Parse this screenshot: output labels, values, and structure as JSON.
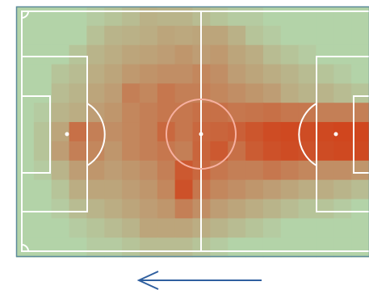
{
  "figure": {
    "kind": "football pitch heatmap",
    "pitch_color": "#b3d3a8",
    "line_color": "#ffffff",
    "border_color": "#5c8a9a",
    "heat_color": "#d23a12",
    "arrow_color": "#2f5f9f",
    "attack_direction": "right-to-left"
  },
  "chart_data": {
    "type": "heatmap",
    "grid": {
      "cols": 20,
      "rows": 13
    },
    "color_scale": {
      "low": "#b3d3a8",
      "high": "#d23a12"
    },
    "intensity": [
      [
        0.0,
        0.0,
        0.0,
        0.0,
        0.05,
        0.1,
        0.15,
        0.22,
        0.2,
        0.2,
        0.15,
        0.1,
        0.05,
        0.05,
        0.0,
        0.0,
        0.0,
        0.0,
        0.0,
        0.0
      ],
      [
        0.0,
        0.0,
        0.0,
        0.0,
        0.12,
        0.2,
        0.22,
        0.25,
        0.3,
        0.28,
        0.3,
        0.3,
        0.22,
        0.1,
        0.05,
        0.0,
        0.0,
        0.0,
        0.0,
        0.0
      ],
      [
        0.0,
        0.0,
        0.0,
        0.1,
        0.2,
        0.25,
        0.3,
        0.32,
        0.35,
        0.4,
        0.35,
        0.38,
        0.3,
        0.25,
        0.15,
        0.1,
        0.05,
        0.0,
        0.0,
        0.0
      ],
      [
        0.0,
        0.0,
        0.1,
        0.15,
        0.25,
        0.3,
        0.38,
        0.42,
        0.45,
        0.45,
        0.5,
        0.45,
        0.35,
        0.3,
        0.25,
        0.2,
        0.15,
        0.1,
        0.05,
        0.0
      ],
      [
        0.0,
        0.0,
        0.15,
        0.2,
        0.3,
        0.35,
        0.55,
        0.5,
        0.6,
        0.55,
        0.55,
        0.5,
        0.45,
        0.4,
        0.35,
        0.25,
        0.2,
        0.2,
        0.15,
        0.1
      ],
      [
        0.0,
        0.05,
        0.2,
        0.25,
        0.35,
        0.4,
        0.5,
        0.55,
        0.6,
        0.6,
        0.65,
        0.65,
        0.6,
        0.62,
        0.65,
        0.6,
        0.6,
        0.55,
        0.55,
        0.55
      ],
      [
        0.0,
        0.1,
        0.3,
        0.65,
        0.55,
        0.45,
        0.5,
        0.55,
        0.7,
        0.6,
        0.7,
        0.72,
        0.75,
        0.82,
        0.88,
        0.9,
        0.88,
        0.9,
        0.92,
        0.92
      ],
      [
        0.0,
        0.1,
        0.35,
        0.55,
        0.5,
        0.4,
        0.5,
        0.55,
        0.6,
        0.55,
        0.72,
        0.8,
        0.65,
        0.78,
        0.85,
        0.88,
        0.85,
        0.88,
        0.9,
        0.9
      ],
      [
        0.0,
        0.05,
        0.2,
        0.35,
        0.4,
        0.35,
        0.4,
        0.45,
        0.55,
        0.8,
        0.7,
        0.6,
        0.55,
        0.55,
        0.6,
        0.55,
        0.5,
        0.45,
        0.45,
        0.4
      ],
      [
        0.0,
        0.0,
        0.1,
        0.25,
        0.3,
        0.3,
        0.35,
        0.4,
        0.5,
        0.85,
        0.6,
        0.5,
        0.45,
        0.4,
        0.35,
        0.3,
        0.25,
        0.25,
        0.2,
        0.15
      ],
      [
        0.0,
        0.0,
        0.05,
        0.15,
        0.2,
        0.25,
        0.3,
        0.35,
        0.4,
        0.55,
        0.45,
        0.35,
        0.3,
        0.25,
        0.2,
        0.15,
        0.1,
        0.1,
        0.05,
        0.0
      ],
      [
        0.0,
        0.0,
        0.0,
        0.05,
        0.1,
        0.15,
        0.2,
        0.3,
        0.3,
        0.3,
        0.25,
        0.2,
        0.15,
        0.1,
        0.05,
        0.0,
        0.0,
        0.0,
        0.0,
        0.0
      ],
      [
        0.0,
        0.0,
        0.0,
        0.0,
        0.05,
        0.05,
        0.1,
        0.15,
        0.15,
        0.15,
        0.1,
        0.05,
        0.0,
        0.0,
        0.0,
        0.0,
        0.0,
        0.0,
        0.0,
        0.0
      ]
    ]
  }
}
